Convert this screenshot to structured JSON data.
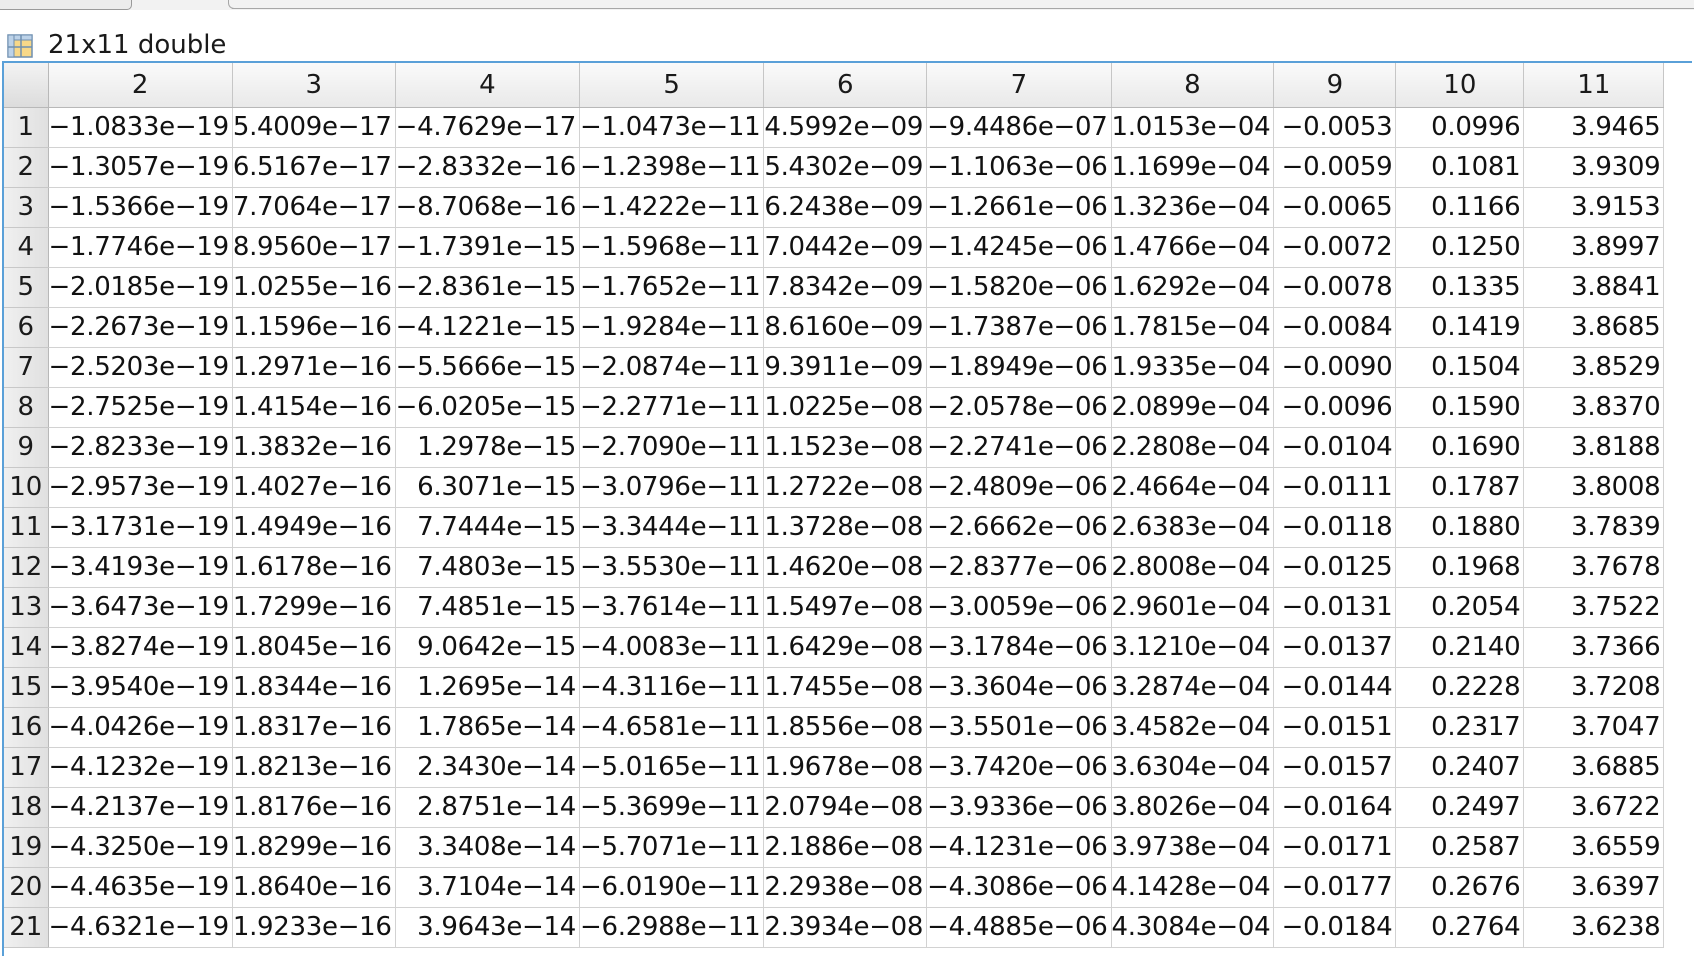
{
  "variable": {
    "title": "21x11 double",
    "icon": "table-grid-icon"
  },
  "table": {
    "columns": [
      "2",
      "3",
      "4",
      "5",
      "6",
      "7",
      "8",
      "9",
      "10",
      "11"
    ],
    "rows": [
      {
        "label": "1",
        "values": [
          "−1.0833e−19",
          "5.4009e−17",
          "−4.7629e−17",
          "−1.0473e−11",
          "4.5992e−09",
          "−9.4486e−07",
          "1.0153e−04",
          "−0.0053",
          "0.0996",
          "3.9465"
        ]
      },
      {
        "label": "2",
        "values": [
          "−1.3057e−19",
          "6.5167e−17",
          "−2.8332e−16",
          "−1.2398e−11",
          "5.4302e−09",
          "−1.1063e−06",
          "1.1699e−04",
          "−0.0059",
          "0.1081",
          "3.9309"
        ]
      },
      {
        "label": "3",
        "values": [
          "−1.5366e−19",
          "7.7064e−17",
          "−8.7068e−16",
          "−1.4222e−11",
          "6.2438e−09",
          "−1.2661e−06",
          "1.3236e−04",
          "−0.0065",
          "0.1166",
          "3.9153"
        ]
      },
      {
        "label": "4",
        "values": [
          "−1.7746e−19",
          "8.9560e−17",
          "−1.7391e−15",
          "−1.5968e−11",
          "7.0442e−09",
          "−1.4245e−06",
          "1.4766e−04",
          "−0.0072",
          "0.1250",
          "3.8997"
        ]
      },
      {
        "label": "5",
        "values": [
          "−2.0185e−19",
          "1.0255e−16",
          "−2.8361e−15",
          "−1.7652e−11",
          "7.8342e−09",
          "−1.5820e−06",
          "1.6292e−04",
          "−0.0078",
          "0.1335",
          "3.8841"
        ]
      },
      {
        "label": "6",
        "values": [
          "−2.2673e−19",
          "1.1596e−16",
          "−4.1221e−15",
          "−1.9284e−11",
          "8.6160e−09",
          "−1.7387e−06",
          "1.7815e−04",
          "−0.0084",
          "0.1419",
          "3.8685"
        ]
      },
      {
        "label": "7",
        "values": [
          "−2.5203e−19",
          "1.2971e−16",
          "−5.5666e−15",
          "−2.0874e−11",
          "9.3911e−09",
          "−1.8949e−06",
          "1.9335e−04",
          "−0.0090",
          "0.1504",
          "3.8529"
        ]
      },
      {
        "label": "8",
        "values": [
          "−2.7525e−19",
          "1.4154e−16",
          "−6.0205e−15",
          "−2.2771e−11",
          "1.0225e−08",
          "−2.0578e−06",
          "2.0899e−04",
          "−0.0096",
          "0.1590",
          "3.8370"
        ]
      },
      {
        "label": "9",
        "values": [
          "−2.8233e−19",
          "1.3832e−16",
          "1.2978e−15",
          "−2.7090e−11",
          "1.1523e−08",
          "−2.2741e−06",
          "2.2808e−04",
          "−0.0104",
          "0.1690",
          "3.8188"
        ]
      },
      {
        "label": "10",
        "values": [
          "−2.9573e−19",
          "1.4027e−16",
          "6.3071e−15",
          "−3.0796e−11",
          "1.2722e−08",
          "−2.4809e−06",
          "2.4664e−04",
          "−0.0111",
          "0.1787",
          "3.8008"
        ]
      },
      {
        "label": "11",
        "values": [
          "−3.1731e−19",
          "1.4949e−16",
          "7.7444e−15",
          "−3.3444e−11",
          "1.3728e−08",
          "−2.6662e−06",
          "2.6383e−04",
          "−0.0118",
          "0.1880",
          "3.7839"
        ]
      },
      {
        "label": "12",
        "values": [
          "−3.4193e−19",
          "1.6178e−16",
          "7.4803e−15",
          "−3.5530e−11",
          "1.4620e−08",
          "−2.8377e−06",
          "2.8008e−04",
          "−0.0125",
          "0.1968",
          "3.7678"
        ]
      },
      {
        "label": "13",
        "values": [
          "−3.6473e−19",
          "1.7299e−16",
          "7.4851e−15",
          "−3.7614e−11",
          "1.5497e−08",
          "−3.0059e−06",
          "2.9601e−04",
          "−0.0131",
          "0.2054",
          "3.7522"
        ]
      },
      {
        "label": "14",
        "values": [
          "−3.8274e−19",
          "1.8045e−16",
          "9.0642e−15",
          "−4.0083e−11",
          "1.6429e−08",
          "−3.1784e−06",
          "3.1210e−04",
          "−0.0137",
          "0.2140",
          "3.7366"
        ]
      },
      {
        "label": "15",
        "values": [
          "−3.9540e−19",
          "1.8344e−16",
          "1.2695e−14",
          "−4.3116e−11",
          "1.7455e−08",
          "−3.3604e−06",
          "3.2874e−04",
          "−0.0144",
          "0.2228",
          "3.7208"
        ]
      },
      {
        "label": "16",
        "values": [
          "−4.0426e−19",
          "1.8317e−16",
          "1.7865e−14",
          "−4.6581e−11",
          "1.8556e−08",
          "−3.5501e−06",
          "3.4582e−04",
          "−0.0151",
          "0.2317",
          "3.7047"
        ]
      },
      {
        "label": "17",
        "values": [
          "−4.1232e−19",
          "1.8213e−16",
          "2.3430e−14",
          "−5.0165e−11",
          "1.9678e−08",
          "−3.7420e−06",
          "3.6304e−04",
          "−0.0157",
          "0.2407",
          "3.6885"
        ]
      },
      {
        "label": "18",
        "values": [
          "−4.2137e−19",
          "1.8176e−16",
          "2.8751e−14",
          "−5.3699e−11",
          "2.0794e−08",
          "−3.9336e−06",
          "3.8026e−04",
          "−0.0164",
          "0.2497",
          "3.6722"
        ]
      },
      {
        "label": "19",
        "values": [
          "−4.3250e−19",
          "1.8299e−16",
          "3.3408e−14",
          "−5.7071e−11",
          "2.1886e−08",
          "−4.1231e−06",
          "3.9738e−04",
          "−0.0171",
          "0.2587",
          "3.6559"
        ]
      },
      {
        "label": "20",
        "values": [
          "−4.4635e−19",
          "1.8640e−16",
          "3.7104e−14",
          "−6.0190e−11",
          "2.2938e−08",
          "−4.3086e−06",
          "4.1428e−04",
          "−0.0177",
          "0.2676",
          "3.6397"
        ]
      },
      {
        "label": "21",
        "values": [
          "−4.6321e−19",
          "1.9233e−16",
          "3.9643e−14",
          "−6.2988e−11",
          "2.3934e−08",
          "−4.4885e−06",
          "4.3084e−04",
          "−0.0184",
          "0.2764",
          "3.6238"
        ]
      }
    ]
  }
}
